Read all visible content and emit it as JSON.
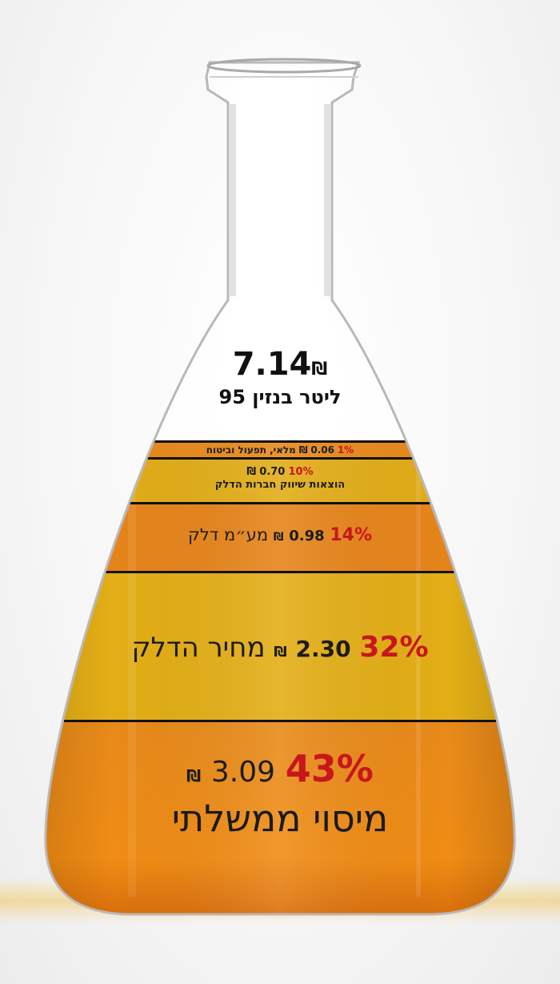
{
  "total": {
    "price": "7.14",
    "currency": "₪",
    "product": "ליטר בנזין 95"
  },
  "segments": [
    {
      "percent": "1%",
      "amount": "0.06",
      "currency": "₪",
      "label": "מלאי, תפעול וביטוח"
    },
    {
      "percent": "10%",
      "amount": "0.70",
      "currency": "₪",
      "label": "הוצאות שיווק חברות הדלק"
    },
    {
      "percent": "14%",
      "amount": "0.98",
      "currency": "₪",
      "label": "מע״מ דלק"
    },
    {
      "percent": "32%",
      "amount": "2.30",
      "currency": "₪",
      "label": "מחיר הדלק"
    },
    {
      "percent": "43%",
      "amount": "3.09",
      "currency": "₪",
      "label": "מיסוי ממשלתי"
    }
  ],
  "colors": {
    "orange": "#e8841a",
    "amber": "#e2aa12",
    "deep_orange": "#e57a12",
    "percent_red": "#c8161d",
    "divider": "#111111"
  }
}
